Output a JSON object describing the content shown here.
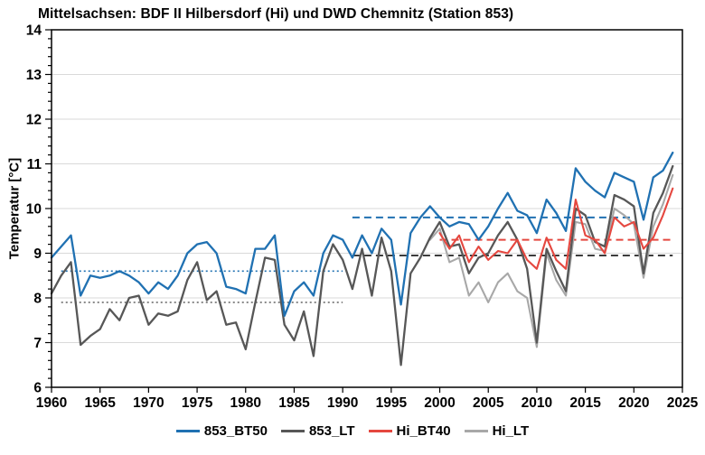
{
  "title": "Mittelsachsen: BDF II Hilbersdorf (Hi) und DWD Chemnitz (Station 853)",
  "y_axis": {
    "label": "Temperatur [°C]",
    "min": 6,
    "max": 14,
    "major_step": 1,
    "minor_step": 0.2
  },
  "x_axis": {
    "min": 1960,
    "max": 2025,
    "major_step": 5
  },
  "colors": {
    "blue": "#2071B2",
    "dark_gray": "#575757",
    "red": "#E5473F",
    "light_gray": "#A8A8A8",
    "grid": "#D9D9D9",
    "frame": "#000000"
  },
  "legend": [
    {
      "key": "853_BT50",
      "label": "853_BT50",
      "color": "#2071B2"
    },
    {
      "key": "853_LT",
      "label": "853_LT",
      "color": "#575757"
    },
    {
      "key": "Hi_BT40",
      "label": "Hi_BT40",
      "color": "#E5473F"
    },
    {
      "key": "Hi_LT",
      "label": "Hi_LT",
      "color": "#A8A8A8"
    }
  ],
  "chart_data": {
    "type": "line",
    "title": "Mittelsachsen: BDF II Hilbersdorf (Hi) und DWD Chemnitz (Station 853)",
    "xlabel": "",
    "ylabel": "Temperatur [°C]",
    "xlim": [
      1960,
      2025
    ],
    "ylim": [
      6,
      14
    ],
    "grid": "horizontal",
    "legend_position": "bottom",
    "series": [
      {
        "name": "Hi_LT",
        "color": "#A8A8A8",
        "width": 2.1,
        "start_year": 1999,
        "values": [
          9.3,
          9.55,
          8.8,
          8.9,
          8.05,
          8.35,
          7.9,
          8.35,
          8.55,
          8.15,
          8.0,
          6.9,
          9.0,
          8.4,
          8.05,
          9.7,
          9.65,
          9.1,
          9.05,
          10.0,
          9.85,
          9.65,
          8.45,
          9.6,
          10.1,
          10.75
        ]
      },
      {
        "name": "853_LT",
        "color": "#575757",
        "width": 2.3,
        "start_year": 1960,
        "values": [
          8.1,
          8.5,
          8.8,
          6.95,
          7.15,
          7.3,
          7.75,
          7.5,
          8.0,
          8.05,
          7.4,
          7.65,
          7.6,
          7.7,
          8.4,
          8.8,
          7.95,
          8.15,
          7.4,
          7.45,
          6.85,
          7.9,
          8.9,
          8.85,
          7.4,
          7.05,
          7.7,
          6.7,
          8.6,
          9.2,
          8.85,
          8.2,
          9.1,
          8.05,
          9.35,
          8.6,
          6.5,
          8.55,
          8.9,
          9.35,
          9.7,
          9.15,
          9.2,
          8.55,
          8.9,
          9.0,
          9.4,
          9.7,
          9.3,
          8.65,
          7.0,
          9.1,
          8.6,
          8.15,
          10.0,
          9.85,
          9.25,
          9.15,
          10.3,
          10.2,
          10.05,
          8.55,
          9.9,
          10.35,
          10.95
        ]
      },
      {
        "name": "Hi_BT40",
        "color": "#E5473F",
        "width": 2.1,
        "start_year": 2000,
        "values": [
          9.45,
          9.1,
          9.4,
          8.8,
          9.15,
          8.85,
          9.05,
          9.0,
          9.3,
          8.85,
          8.65,
          9.35,
          8.85,
          8.65,
          10.2,
          9.4,
          9.3,
          9.0,
          9.8,
          9.6,
          9.7,
          9.1,
          9.35,
          9.85,
          10.45
        ]
      },
      {
        "name": "853_BT50",
        "color": "#2071B2",
        "width": 2.3,
        "start_year": 1960,
        "values": [
          8.9,
          9.15,
          9.4,
          8.05,
          8.5,
          8.45,
          8.5,
          8.6,
          8.5,
          8.35,
          8.1,
          8.35,
          8.2,
          8.5,
          9.0,
          9.2,
          9.25,
          9.0,
          8.25,
          8.2,
          8.1,
          9.1,
          9.1,
          9.4,
          7.6,
          8.15,
          8.35,
          8.05,
          9.0,
          9.4,
          9.3,
          8.9,
          9.4,
          9.0,
          9.55,
          9.3,
          7.85,
          9.45,
          9.8,
          10.05,
          9.8,
          9.6,
          9.7,
          9.65,
          9.3,
          9.6,
          10.0,
          10.35,
          9.95,
          9.85,
          9.45,
          10.2,
          9.9,
          9.5,
          10.9,
          10.6,
          10.4,
          10.25,
          10.8,
          10.7,
          10.6,
          9.75,
          10.7,
          10.85,
          11.25
        ]
      }
    ],
    "reference_lines": [
      {
        "name": "853_BT50-mean-1961-1990",
        "style": "dotted",
        "color": "#2071B2",
        "y": 8.6,
        "x1": 1961,
        "x2": 1990
      },
      {
        "name": "853_LT-mean-1961-1990",
        "style": "dotted",
        "color": "#6E6E6E",
        "y": 7.9,
        "x1": 1961,
        "x2": 1990
      },
      {
        "name": "853_BT50-mean-1991-2020",
        "style": "dashed",
        "color": "#2071B2",
        "y": 9.8,
        "x1": 1991,
        "x2": 2020
      },
      {
        "name": "853_LT-mean-1991-2020",
        "style": "dashed",
        "color": "#3C3C3C",
        "y": 8.95,
        "x1": 1991,
        "x2": 2024
      },
      {
        "name": "Hi_BT40-mean-2000-2024",
        "style": "dashed",
        "color": "#E5473F",
        "y": 9.3,
        "x1": 2000,
        "x2": 2024
      }
    ]
  }
}
